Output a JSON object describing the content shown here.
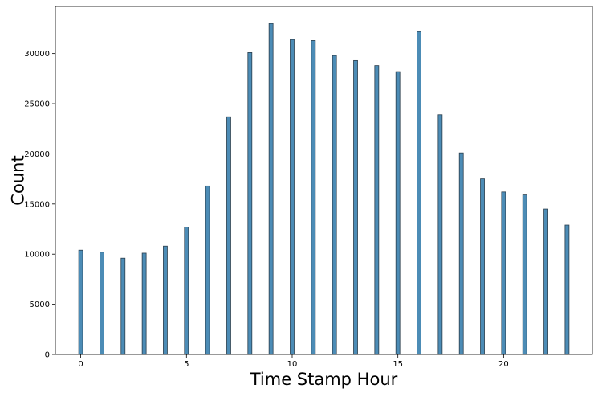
{
  "chart_data": {
    "type": "bar",
    "title": "",
    "xlabel": "Time Stamp Hour",
    "ylabel": "Count",
    "x": [
      0,
      1,
      2,
      3,
      4,
      5,
      6,
      7,
      8,
      9,
      10,
      11,
      12,
      13,
      14,
      15,
      16,
      17,
      18,
      19,
      20,
      21,
      22,
      23
    ],
    "values": [
      10400,
      10200,
      9600,
      10100,
      10800,
      12700,
      16800,
      23700,
      30100,
      33000,
      31400,
      31300,
      29800,
      29300,
      28800,
      28200,
      32200,
      23900,
      20100,
      17500,
      16200,
      15900,
      14500,
      12900
    ],
    "xlim": [
      -1.2,
      24.2
    ],
    "ylim": [
      0,
      34700
    ],
    "xticks": [
      0,
      5,
      10,
      15,
      20
    ],
    "yticks": [
      0,
      5000,
      10000,
      15000,
      20000,
      25000,
      30000
    ],
    "grid": false,
    "bar_color": "#4c8cb6",
    "bar_edge_color": "#2b3e4c"
  }
}
